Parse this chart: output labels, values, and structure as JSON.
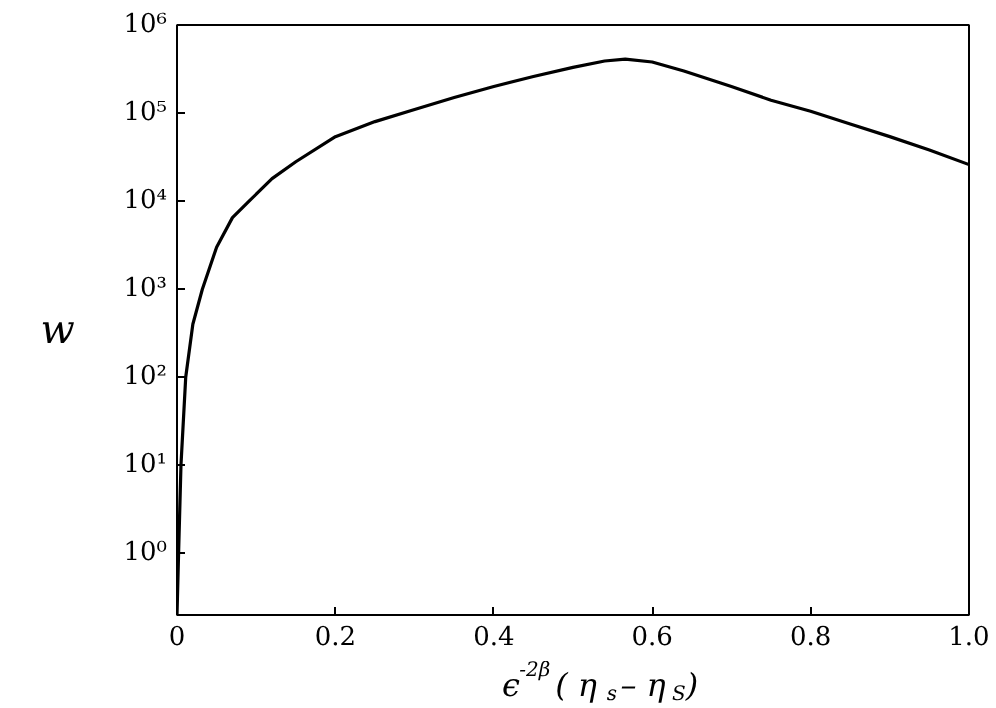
{
  "chart_data": {
    "type": "line",
    "xlabel": "ϵ$^{-2β}$( η$_{s}$– η$_{S}$)",
    "ylabel": "w",
    "log": "y",
    "grid": false,
    "marker": "none",
    "line_style": "solid",
    "xlim": [
      0,
      1
    ],
    "xticks": [
      0,
      0.2,
      0.4,
      0.6,
      0.8,
      {
        "value": 1,
        "label": "1.0"
      }
    ],
    "ylim": [
      0.2,
      1000000
    ],
    "yticks": [
      {
        "value": 1,
        "label": "10⁰"
      },
      {
        "value": 10,
        "label": "10¹"
      },
      {
        "value": 100,
        "label": "10²"
      },
      {
        "value": 1000,
        "label": "10³"
      },
      {
        "value": 10000,
        "label": "10⁴"
      },
      {
        "value": 100000,
        "label": "10⁵"
      },
      {
        "value": 1000000,
        "label": "10⁶"
      }
    ],
    "series": [
      {
        "color": "#000000",
        "x": [
          0,
          0.002,
          0.005,
          0.011,
          0.02,
          0.032,
          0.05,
          0.07,
          0.091,
          0.12,
          0.15,
          0.2,
          0.25,
          0.3,
          0.35,
          0.4,
          0.45,
          0.5,
          0.54,
          0.566,
          0.6,
          0.64,
          0.7,
          0.75,
          0.8,
          0.85,
          0.9,
          0.95,
          1.0
        ],
        "values": [
          0.2,
          1,
          10,
          100,
          400,
          1000,
          3000,
          6500,
          10000,
          18000,
          28000,
          54000,
          80000,
          110000,
          150000,
          200000,
          260000,
          330000,
          390000,
          410000,
          380000,
          300000,
          200000,
          140000,
          105000,
          75000,
          54000,
          38000,
          26000
        ]
      }
    ]
  }
}
